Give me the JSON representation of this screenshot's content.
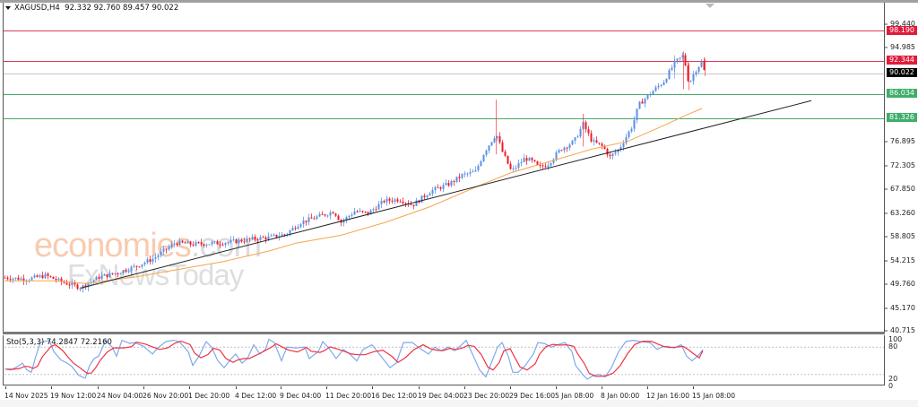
{
  "header": {
    "symbol": "XAGUSD,H4",
    "ohlc": "92.332 92.760 89.457 90.022",
    "open": 92.332,
    "high": 92.76,
    "low": 89.457,
    "close": 90.022
  },
  "indicator": {
    "label": "Sto(5,3,3) 74.2847 72.2160",
    "name": "Sto(5,3,3)",
    "main": 74.2847,
    "signal": 72.216,
    "levels": [
      "100",
      "80",
      "20",
      "0"
    ]
  },
  "price_axis": [
    "99.440",
    "94.985",
    "76.895",
    "72.305",
    "67.850",
    "63.260",
    "58.805",
    "54.215",
    "49.760",
    "45.170",
    "40.715"
  ],
  "price_tags": {
    "r1": "98.190",
    "r2": "92.344",
    "current": "90.022",
    "s1": "86.034",
    "s2": "81.326"
  },
  "time_axis": [
    "14 Nov 2025",
    "19 Nov 12:00",
    "24 Nov 04:00",
    "26 Nov 20:00",
    "1 Dec 20:00",
    "4 Dec 12:00",
    "9 Dec 04:00",
    "11 Dec 20:00",
    "16 Dec 12:00",
    "19 Dec 04:00",
    "23 Dec 20:00",
    "29 Dec 16:00",
    "5 Jan 08:00",
    "8 Jan 00:00",
    "12 Jan 16:00",
    "15 Jan 08:00"
  ],
  "watermark": {
    "line1_a": "economies",
    "line1_b": ".com",
    "line2": "FxNewsToday"
  },
  "colors": {
    "bull": "#5b8fe6",
    "bear": "#f0192a",
    "resistance": "#d83c5a",
    "support": "#4aa96c",
    "current": "#000000",
    "ma": "#f5a54a",
    "trendline": "#222222",
    "sto_main": "#7fa9ee",
    "sto_signal": "#ee3344"
  },
  "chart_data": {
    "type": "candlestick",
    "title": "XAGUSD,H4",
    "xlabel": "",
    "ylabel": "",
    "ylim": [
      40.715,
      99.44
    ],
    "grid": false,
    "categories": [
      "14 Nov 2025",
      "19 Nov 12:00",
      "24 Nov 04:00",
      "26 Nov 20:00",
      "1 Dec 20:00",
      "4 Dec 12:00",
      "9 Dec 04:00",
      "11 Dec 20:00",
      "16 Dec 12:00",
      "19 Dec 04:00",
      "23 Dec 20:00",
      "29 Dec 16:00",
      "5 Jan 08:00",
      "8 Jan 00:00",
      "12 Jan 16:00",
      "15 Jan 08:00"
    ],
    "series": [
      {
        "name": "Close (approx at tick)",
        "values": [
          50.8,
          49.2,
          51.5,
          54.0,
          57.6,
          57.8,
          58.8,
          62.5,
          64.8,
          66.5,
          71.5,
          72.0,
          79.2,
          75.5,
          88.5,
          90.0
        ]
      },
      {
        "name": "MA",
        "values": [
          50.5,
          50.2,
          51.0,
          52.2,
          53.5,
          55.0,
          57.0,
          59.6,
          62.5,
          65.0,
          68.5,
          71.5,
          74.0,
          76.0,
          80.0,
          82.5
        ]
      },
      {
        "name": "Stochastic %K",
        "values": [
          25,
          10,
          55,
          60,
          80,
          50,
          30,
          60,
          45,
          55,
          90,
          55,
          90,
          15,
          95,
          74.28
        ]
      },
      {
        "name": "Stochastic %D",
        "values": [
          22,
          12,
          50,
          62,
          78,
          52,
          35,
          58,
          48,
          52,
          85,
          58,
          85,
          18,
          90,
          72.22
        ]
      }
    ],
    "horizontal_levels": [
      {
        "name": "resistance",
        "value": 98.19,
        "color": "#d83c5a"
      },
      {
        "name": "resistance",
        "value": 92.344,
        "color": "#d83c5a"
      },
      {
        "name": "current",
        "value": 90.022,
        "color": "#000000"
      },
      {
        "name": "support",
        "value": 86.034,
        "color": "#4aa96c"
      },
      {
        "name": "support",
        "value": 81.326,
        "color": "#4aa96c"
      }
    ],
    "trendline": {
      "from": [
        "19 Nov 12:00",
        48.9
      ],
      "to": [
        "after 15 Jan 08:00",
        84.8
      ]
    },
    "indicator_levels": [
      80,
      20
    ],
    "indicator_ylim": [
      0,
      100
    ]
  }
}
